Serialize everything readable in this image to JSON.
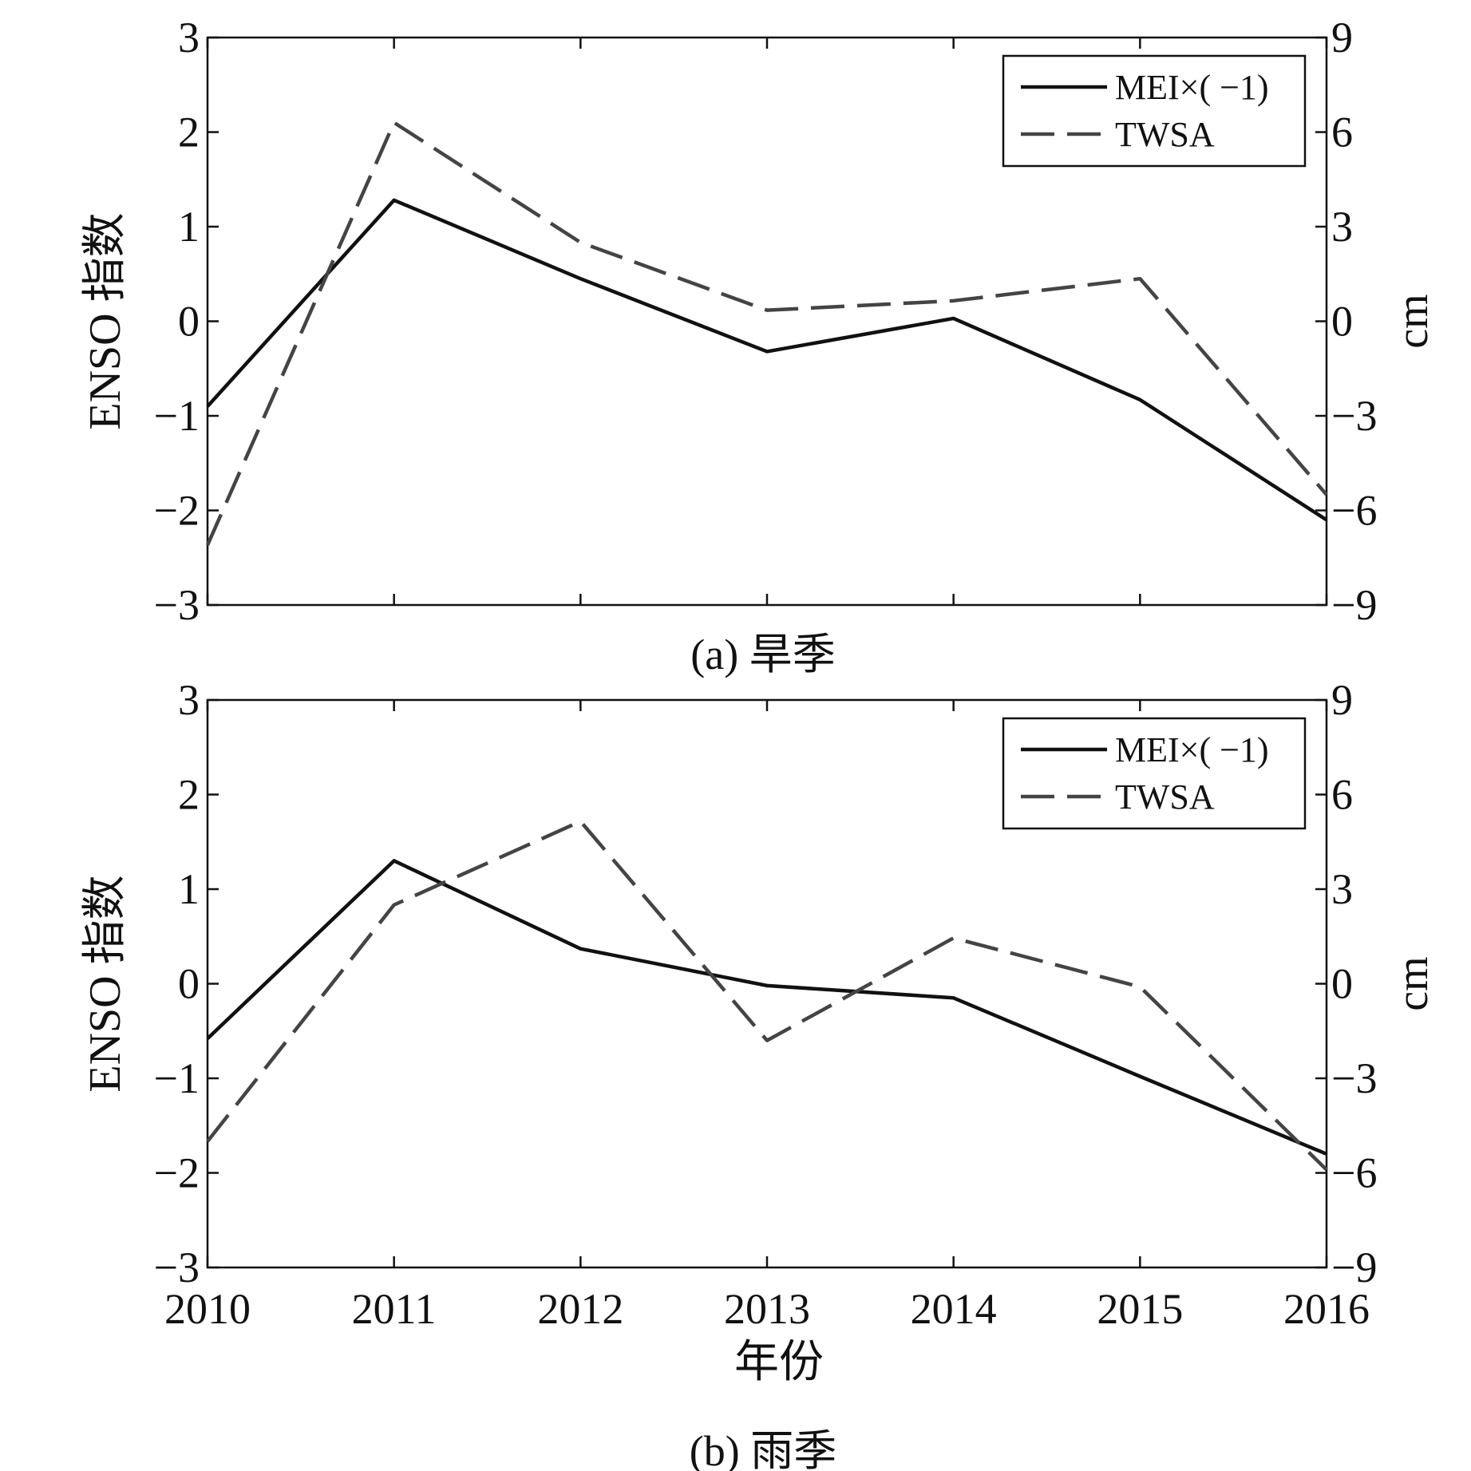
{
  "figure": {
    "xlabel": "年份",
    "colors": {
      "mei": "#111111",
      "twsa": "#444444",
      "frame": "#111111"
    }
  },
  "chart_data": [
    {
      "type": "line",
      "caption": "(a) 旱季",
      "ylabel_left": "ENSO 指数",
      "ylabel_right": "cm",
      "x": [
        2010,
        2011,
        2012,
        2013,
        2014,
        2015,
        2016
      ],
      "xlim": [
        2010,
        2016
      ],
      "ylim_left": [
        -3,
        3
      ],
      "ylim_right": [
        -9,
        9
      ],
      "yticks_left": [
        "3",
        "2",
        "1",
        "0",
        "−1",
        "−2",
        "−3"
      ],
      "yticks_right": [
        "9",
        "6",
        "3",
        "0",
        "−3",
        "−6",
        "−9"
      ],
      "series": [
        {
          "name": "MEI×( −1)",
          "axis": "left",
          "style": "solid",
          "values": [
            -0.9,
            1.28,
            0.45,
            -0.32,
            0.03,
            -0.83,
            -2.1
          ]
        },
        {
          "name": "TWSA",
          "axis": "right",
          "style": "dashed",
          "values": [
            -7.1,
            6.3,
            2.5,
            0.35,
            0.65,
            1.35,
            -5.5
          ]
        }
      ],
      "legend_position": "top-right"
    },
    {
      "type": "line",
      "caption": "(b) 雨季",
      "ylabel_left": "ENSO 指数",
      "ylabel_right": "cm",
      "x": [
        2010,
        2011,
        2012,
        2013,
        2014,
        2015,
        2016
      ],
      "xlim": [
        2010,
        2016
      ],
      "ylim_left": [
        -3,
        3
      ],
      "ylim_right": [
        -9,
        9
      ],
      "yticks_left": [
        "3",
        "2",
        "1",
        "0",
        "−1",
        "−2",
        "−3"
      ],
      "yticks_right": [
        "9",
        "6",
        "3",
        "0",
        "−3",
        "−6",
        "−9"
      ],
      "xticks": [
        "2010",
        "2011",
        "2012",
        "2013",
        "2014",
        "2015",
        "2016"
      ],
      "series": [
        {
          "name": "MEI×( −1)",
          "axis": "left",
          "style": "solid",
          "values": [
            -0.58,
            1.3,
            0.37,
            -0.02,
            -0.15,
            -0.98,
            -1.8
          ]
        },
        {
          "name": "TWSA",
          "axis": "right",
          "style": "dashed",
          "values": [
            -5.0,
            2.5,
            5.15,
            -1.8,
            1.45,
            -0.1,
            -5.9
          ]
        }
      ],
      "legend_position": "top-right"
    }
  ]
}
